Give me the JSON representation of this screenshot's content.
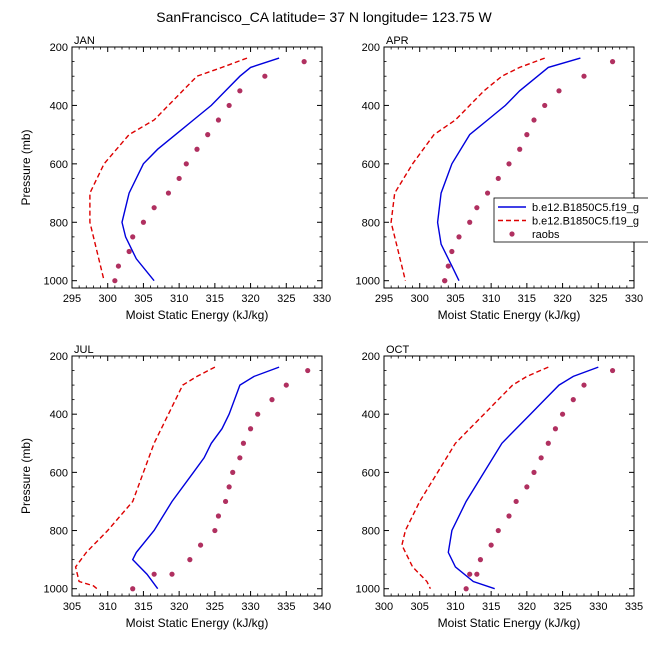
{
  "figure": {
    "title": "SanFrancisco_CA  latitude= 37 N longitude= 123.75 W"
  },
  "chart_data": [
    {
      "type": "line",
      "panel_label": "JAN",
      "xlabel": "Moist Static Energy (kJ/kg)",
      "ylabel": "Pressure (mb)",
      "xlim": [
        295,
        330
      ],
      "ylim": [
        1025,
        200
      ],
      "y_reversed": true,
      "xticks": [
        295,
        300,
        305,
        310,
        315,
        320,
        325,
        330
      ],
      "yticks": [
        200,
        400,
        600,
        800,
        1000
      ],
      "grid": false,
      "series": [
        {
          "style": "solid",
          "color": "#0000dd",
          "x": [
            324.0,
            320.0,
            318.5,
            316.5,
            314.5,
            312.0,
            309.5,
            307.0,
            305.0,
            303.0,
            302.0,
            302.5,
            304.0,
            306.5
          ],
          "y": [
            238,
            270,
            300,
            350,
            400,
            450,
            500,
            550,
            600,
            700,
            800,
            850,
            925,
            1000
          ]
        },
        {
          "style": "dashed",
          "color": "#dd0000",
          "x": [
            319.5,
            316.0,
            312.5,
            310.5,
            308.5,
            306.5,
            303.0,
            299.5,
            297.5,
            297.5,
            298.5,
            299.5
          ],
          "y": [
            238,
            270,
            300,
            350,
            400,
            450,
            500,
            600,
            700,
            800,
            900,
            1000
          ]
        },
        {
          "style": "markers",
          "color": "#b03060",
          "x": [
            327.5,
            322.0,
            318.5,
            317.0,
            315.5,
            314.0,
            312.5,
            311.0,
            310.0,
            308.5,
            306.5,
            305.0,
            303.5,
            303.0,
            301.5,
            301.0
          ],
          "y": [
            250,
            300,
            350,
            400,
            450,
            500,
            550,
            600,
            650,
            700,
            750,
            800,
            850,
            900,
            950,
            1000
          ]
        }
      ]
    },
    {
      "type": "line",
      "panel_label": "APR",
      "xlabel": "Moist Static Energy (kJ/kg)",
      "ylabel": "",
      "xlim": [
        295,
        330
      ],
      "ylim": [
        1025,
        200
      ],
      "y_reversed": true,
      "xticks": [
        295,
        300,
        305,
        310,
        315,
        320,
        325,
        330
      ],
      "yticks": [
        200,
        400,
        600,
        800,
        1000
      ],
      "grid": false,
      "series": [
        {
          "style": "solid",
          "color": "#0000dd",
          "x": [
            322.5,
            318.0,
            316.5,
            314.0,
            312.0,
            309.5,
            307.0,
            304.5,
            303.0,
            302.5,
            303.0,
            304.5,
            305.5
          ],
          "y": [
            238,
            270,
            300,
            350,
            400,
            450,
            500,
            600,
            700,
            800,
            875,
            950,
            1000
          ]
        },
        {
          "style": "dashed",
          "color": "#dd0000",
          "x": [
            317.5,
            314.0,
            311.5,
            309.0,
            307.0,
            305.0,
            302.0,
            299.0,
            296.5,
            296.0,
            297.0,
            298.0
          ],
          "y": [
            238,
            270,
            300,
            350,
            400,
            450,
            500,
            600,
            700,
            800,
            900,
            1000
          ]
        },
        {
          "style": "markers",
          "color": "#b03060",
          "x": [
            327.0,
            323.0,
            319.5,
            317.5,
            316.0,
            315.0,
            314.0,
            312.5,
            311.0,
            309.5,
            308.0,
            307.0,
            305.5,
            304.5,
            304.0,
            303.5,
            303.5
          ],
          "y": [
            250,
            300,
            350,
            400,
            450,
            500,
            550,
            600,
            650,
            700,
            750,
            800,
            850,
            900,
            950,
            1000,
            1000
          ]
        }
      ]
    },
    {
      "type": "line",
      "panel_label": "JUL",
      "xlabel": "Moist Static Energy (kJ/kg)",
      "ylabel": "Pressure (mb)",
      "xlim": [
        305,
        340
      ],
      "ylim": [
        1025,
        200
      ],
      "y_reversed": true,
      "xticks": [
        305,
        310,
        315,
        320,
        325,
        330,
        335,
        340
      ],
      "yticks": [
        200,
        400,
        600,
        800,
        1000
      ],
      "grid": false,
      "series": [
        {
          "style": "solid",
          "color": "#0000dd",
          "x": [
            334.0,
            330.5,
            328.5,
            327.0,
            326.0,
            324.5,
            323.5,
            322.0,
            319.0,
            316.5,
            314.0,
            313.5,
            315.5,
            317.0
          ],
          "y": [
            238,
            270,
            300,
            400,
            450,
            500,
            550,
            600,
            700,
            800,
            875,
            900,
            950,
            1000
          ]
        },
        {
          "style": "dashed",
          "color": "#dd0000",
          "x": [
            325.0,
            322.5,
            320.5,
            318.5,
            316.5,
            315.0,
            313.5,
            310.0,
            307.0,
            305.5,
            306.0,
            308.0,
            308.5
          ],
          "y": [
            238,
            270,
            300,
            400,
            500,
            600,
            700,
            800,
            875,
            925,
            975,
            990,
            1000
          ]
        },
        {
          "style": "markers",
          "color": "#b03060",
          "x": [
            338.0,
            335.0,
            333.0,
            331.0,
            330.0,
            329.0,
            328.5,
            327.5,
            327.0,
            326.5,
            325.5,
            325.0,
            323.0,
            321.5,
            319.0,
            316.5,
            313.5
          ],
          "y": [
            250,
            300,
            350,
            400,
            450,
            500,
            550,
            600,
            650,
            700,
            750,
            800,
            850,
            900,
            950,
            950,
            1000
          ]
        }
      ]
    },
    {
      "type": "line",
      "panel_label": "OCT",
      "xlabel": "Moist Static Energy (kJ/kg)",
      "ylabel": "",
      "xlim": [
        300,
        335
      ],
      "ylim": [
        1025,
        200
      ],
      "y_reversed": true,
      "xticks": [
        300,
        305,
        310,
        315,
        320,
        325,
        330,
        335
      ],
      "yticks": [
        200,
        400,
        600,
        800,
        1000
      ],
      "grid": false,
      "series": [
        {
          "style": "solid",
          "color": "#0000dd",
          "x": [
            330.0,
            326.5,
            324.5,
            322.5,
            320.5,
            318.5,
            316.5,
            314.0,
            311.5,
            309.5,
            309.0,
            310.0,
            312.5,
            315.5
          ],
          "y": [
            238,
            270,
            300,
            350,
            400,
            450,
            500,
            600,
            700,
            800,
            875,
            925,
            975,
            1000
          ]
        },
        {
          "style": "dashed",
          "color": "#dd0000",
          "x": [
            323.0,
            320.0,
            318.0,
            316.0,
            314.0,
            312.0,
            310.0,
            307.5,
            305.0,
            303.0,
            302.5,
            304.0,
            306.0,
            306.5
          ],
          "y": [
            238,
            270,
            300,
            350,
            400,
            450,
            500,
            600,
            700,
            800,
            850,
            925,
            975,
            1000
          ]
        },
        {
          "style": "markers",
          "color": "#b03060",
          "x": [
            332.0,
            328.0,
            326.5,
            325.0,
            324.0,
            323.0,
            322.0,
            321.0,
            320.0,
            318.5,
            317.5,
            316.0,
            315.0,
            313.5,
            313.0,
            312.0,
            311.5
          ],
          "y": [
            250,
            300,
            350,
            400,
            450,
            500,
            550,
            600,
            650,
            700,
            750,
            800,
            850,
            900,
            950,
            950,
            1000
          ]
        }
      ]
    }
  ],
  "legend": {
    "placement": "right of top-right panel",
    "entries": [
      {
        "label": "b.e12.B1850C5.f19_g",
        "style": "solid",
        "color": "#0000dd"
      },
      {
        "label": "b.e12.B1850C5.f19_g",
        "style": "dashed",
        "color": "#dd0000"
      },
      {
        "label": "raobs",
        "style": "markers",
        "color": "#b03060"
      }
    ]
  }
}
